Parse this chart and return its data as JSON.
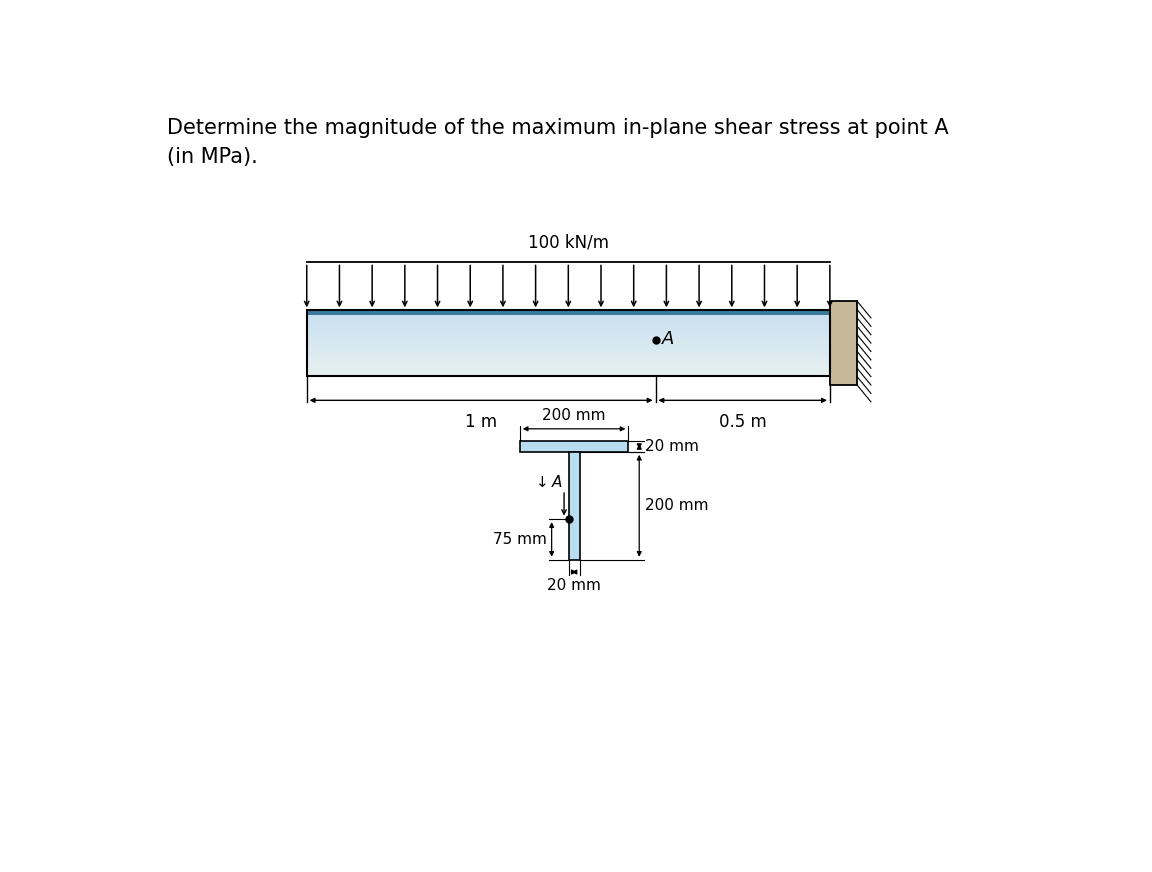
{
  "title_line1": "Determine the magnitude of the maximum in-plane shear stress at point A",
  "title_line2": "(in MPa).",
  "load_label": "100 kN/m",
  "dim1_label": "1 m",
  "dim2_label": "0.5 m",
  "cs_label_width": "200 mm",
  "cs_label_flange_h": "20 mm",
  "cs_label_web_h": "200 mm",
  "cs_label_75": "75 mm",
  "cs_label_web_w": "20 mm",
  "beam_color_light": "#c8e4f0",
  "beam_color_mid": "#a8cfe0",
  "beam_top_stripe": "#3a7a9c",
  "beam_outline": "#000000",
  "wall_color": "#c8b89a",
  "wall_hatch_color": "#888888",
  "cs_flange_color": "#b8ddf0",
  "cs_web_color": "#b8ddf0",
  "background_color": "#ffffff",
  "title_fontsize": 15,
  "label_fontsize": 12,
  "dim_fontsize": 12,
  "cs_dim_fontsize": 11
}
